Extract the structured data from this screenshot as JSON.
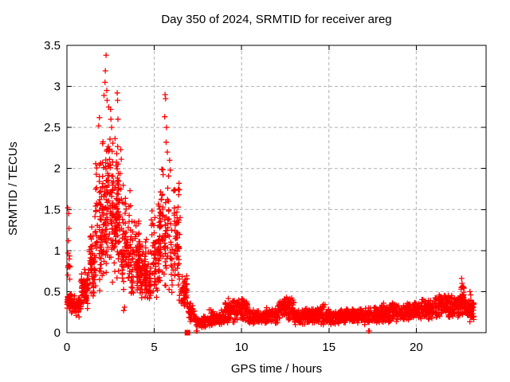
{
  "chart_data": {
    "type": "scatter",
    "title": "Day 350 of 2024, SRMTID for receiver areg",
    "xlabel": "GPS time / hours",
    "ylabel": "SRMTID / TECUs",
    "xlim": [
      0,
      24
    ],
    "ylim": [
      0,
      3.5
    ],
    "xticks": [
      0,
      5,
      10,
      15,
      20
    ],
    "xtick_labels": [
      "0",
      "5",
      "10",
      "15",
      "20"
    ],
    "yticks": [
      0,
      0.5,
      1,
      1.5,
      2,
      2.5,
      3,
      3.5
    ],
    "ytick_labels": [
      "0",
      "0.5",
      "1",
      "1.5",
      "2",
      "2.5",
      "3",
      "3.5"
    ],
    "grid": true,
    "legend_position": "none",
    "marker": "+",
    "marker_color": "#ff0000",
    "grid_color": "#b0b0b0",
    "axis_color": "#000000",
    "background": "#ffffff",
    "series_name": "SRMTID",
    "peak_time_hours": 2.2,
    "peak_value_tecus": 3.38,
    "secondary_peak_time_hours": 5.6,
    "secondary_peak_value_tecus": 2.9,
    "quiet_band_range_tecus": [
      0.05,
      0.35
    ],
    "data_end_time_hours": 23.3,
    "density_bins": [
      [
        0.0,
        0.25,
        40,
        0.22,
        0.52
      ],
      [
        0.05,
        0.2,
        8,
        0.6,
        1.0
      ],
      [
        0.25,
        0.8,
        65,
        0.17,
        0.48
      ],
      [
        0.8,
        1.2,
        55,
        0.25,
        0.85
      ],
      [
        1.2,
        1.6,
        60,
        0.35,
        1.3
      ],
      [
        1.6,
        2.0,
        70,
        0.5,
        2.05
      ],
      [
        2.0,
        2.45,
        85,
        0.7,
        2.75
      ],
      [
        2.45,
        2.8,
        70,
        0.6,
        2.35
      ],
      [
        2.8,
        3.1,
        55,
        0.6,
        2.25
      ],
      [
        3.1,
        3.6,
        70,
        0.45,
        1.8
      ],
      [
        3.6,
        4.2,
        85,
        0.45,
        1.35
      ],
      [
        4.2,
        4.8,
        80,
        0.35,
        1.15
      ],
      [
        4.8,
        5.3,
        70,
        0.4,
        1.55
      ],
      [
        5.3,
        5.9,
        80,
        0.5,
        2.0
      ],
      [
        5.9,
        6.5,
        70,
        0.35,
        1.75
      ],
      [
        6.5,
        6.9,
        50,
        0.25,
        0.75
      ],
      [
        6.9,
        7.35,
        40,
        0.08,
        0.4
      ],
      [
        7.35,
        8.1,
        70,
        0.04,
        0.22
      ],
      [
        8.1,
        9.0,
        105,
        0.06,
        0.3
      ],
      [
        9.0,
        9.7,
        80,
        0.08,
        0.45
      ],
      [
        9.7,
        10.4,
        85,
        0.1,
        0.45
      ],
      [
        10.4,
        11.2,
        95,
        0.07,
        0.3
      ],
      [
        11.2,
        12.1,
        105,
        0.08,
        0.33
      ],
      [
        12.1,
        13.0,
        105,
        0.1,
        0.48
      ],
      [
        13.0,
        14.0,
        110,
        0.08,
        0.32
      ],
      [
        14.0,
        15.0,
        110,
        0.07,
        0.36
      ],
      [
        15.0,
        16.0,
        110,
        0.08,
        0.3
      ],
      [
        16.0,
        17.0,
        105,
        0.09,
        0.32
      ],
      [
        17.0,
        18.0,
        100,
        0.08,
        0.33
      ],
      [
        18.0,
        19.0,
        105,
        0.1,
        0.38
      ],
      [
        19.0,
        20.0,
        110,
        0.12,
        0.4
      ],
      [
        20.0,
        21.0,
        110,
        0.13,
        0.43
      ],
      [
        21.0,
        22.0,
        110,
        0.15,
        0.5
      ],
      [
        22.0,
        22.45,
        60,
        0.15,
        0.5
      ],
      [
        22.45,
        22.75,
        55,
        0.18,
        0.62
      ],
      [
        22.75,
        23.0,
        35,
        0.15,
        0.45
      ],
      [
        22.95,
        23.3,
        45,
        0.06,
        0.45
      ]
    ],
    "outlier_points": [
      [
        0.05,
        1.52
      ],
      [
        0.1,
        1.45
      ],
      [
        0.12,
        1.27
      ],
      [
        0.08,
        1.12
      ],
      [
        0.06,
        0.97
      ],
      [
        0.15,
        0.8
      ],
      [
        2.24,
        3.38
      ],
      [
        2.2,
        3.19
      ],
      [
        2.18,
        3.05
      ],
      [
        2.28,
        2.95
      ],
      [
        2.12,
        2.89
      ],
      [
        2.3,
        2.83
      ],
      [
        1.82,
        2.52
      ],
      [
        1.86,
        2.62
      ],
      [
        2.5,
        2.72
      ],
      [
        2.52,
        2.6
      ],
      [
        2.56,
        2.5
      ],
      [
        2.88,
        2.92
      ],
      [
        2.9,
        2.83
      ],
      [
        2.92,
        2.6
      ],
      [
        5.62,
        2.9
      ],
      [
        5.65,
        2.85
      ],
      [
        5.6,
        2.63
      ],
      [
        5.7,
        2.5
      ],
      [
        5.68,
        2.32
      ],
      [
        5.75,
        2.2
      ],
      [
        5.88,
        2.1
      ],
      [
        5.92,
        1.98
      ],
      [
        6.42,
        1.82
      ],
      [
        6.44,
        1.74
      ],
      [
        6.4,
        1.68
      ],
      [
        3.25,
        0.27
      ],
      [
        3.3,
        0.31
      ],
      [
        7.41,
        0.02
      ],
      [
        7.45,
        0.02
      ],
      [
        17.27,
        0.02
      ],
      [
        17.32,
        0.02
      ],
      [
        22.6,
        0.66
      ],
      [
        22.62,
        0.6
      ],
      [
        22.58,
        0.55
      ],
      [
        23.08,
        0.5
      ],
      [
        23.12,
        0.46
      ]
    ],
    "zero_cluster": {
      "t": 6.9,
      "value": 0.0
    }
  }
}
